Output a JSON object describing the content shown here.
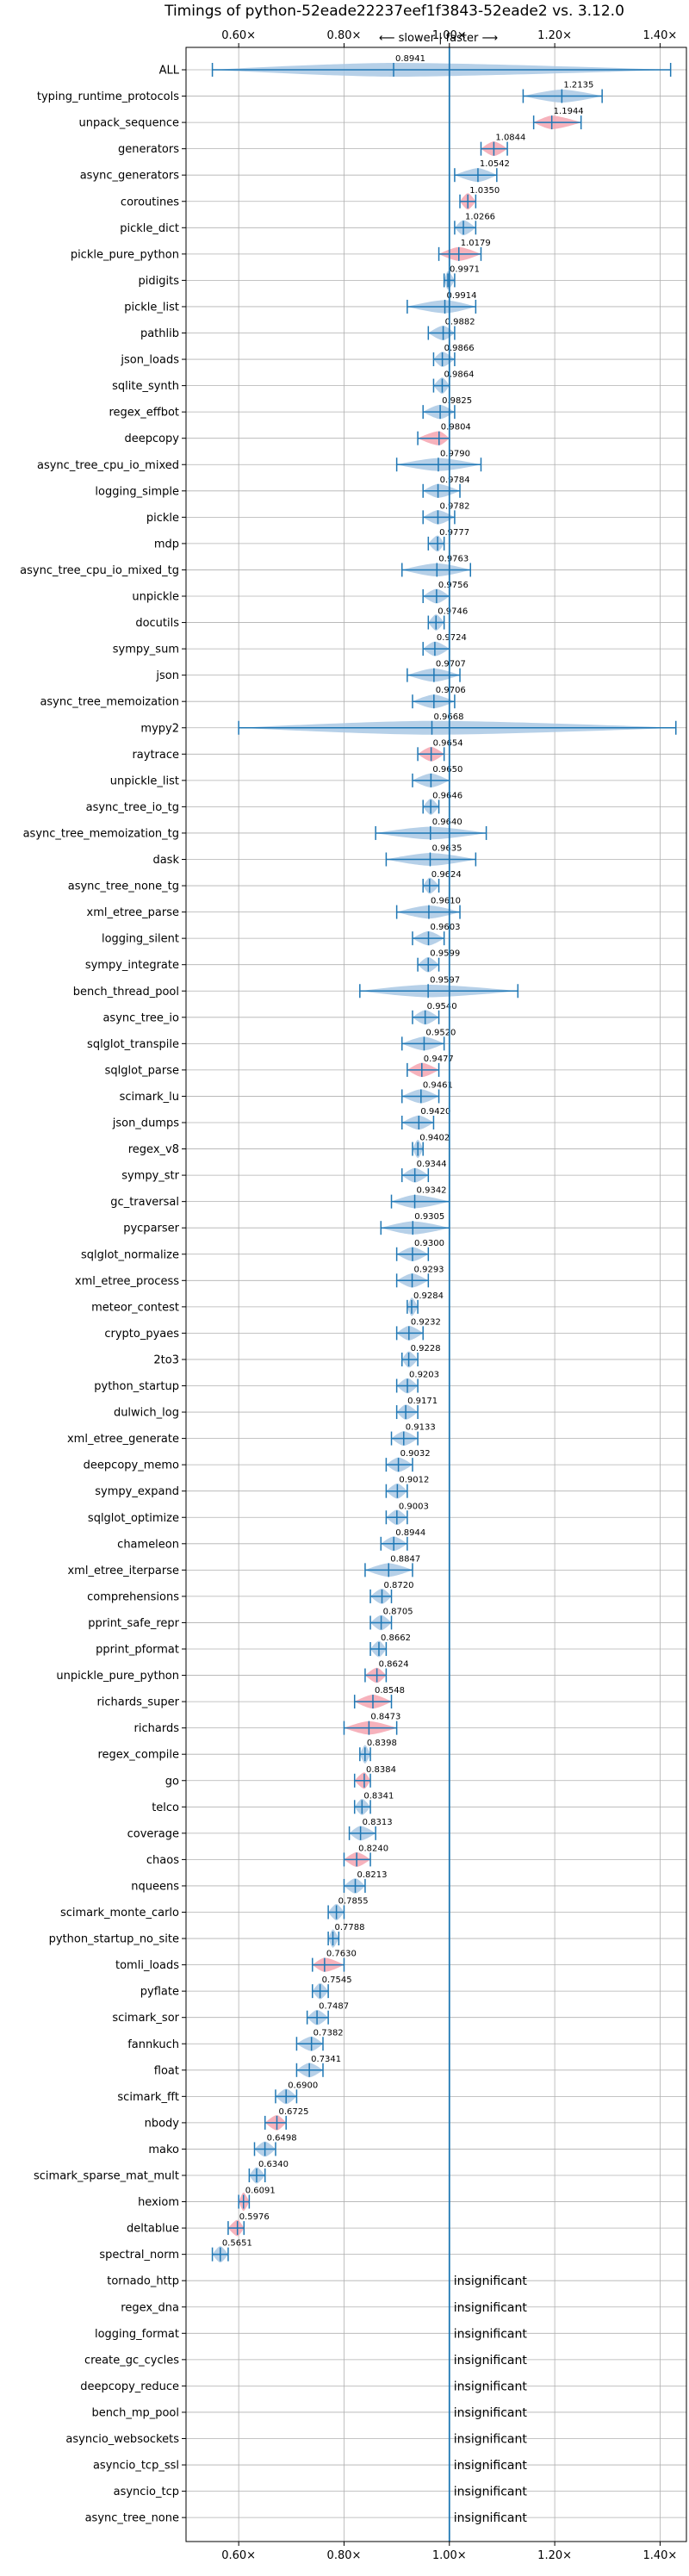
{
  "chart_data": {
    "type": "violin",
    "title": "Timings of python-52eade22237eef1f3843-52eade2 vs. 3.12.0",
    "direction_label": "⟵ slower | faster ⟶",
    "xlabel": "",
    "ylabel": "",
    "xlim": [
      0.5,
      1.45
    ],
    "x_ticks": [
      0.6,
      0.8,
      1.0,
      1.2,
      1.4
    ],
    "x_tick_labels": [
      "0.60×",
      "0.80×",
      "1.00×",
      "1.20×",
      "1.40×"
    ],
    "reference_line": 1.0,
    "grid": true,
    "colors": {
      "normal": "#a9c8e4",
      "regressed": "#f4a5b0",
      "line": "#1f77b4"
    },
    "significant": [
      {
        "name": "ALL",
        "value": 0.8941,
        "lo": 0.55,
        "hi": 1.42,
        "color": "normal"
      },
      {
        "name": "typing_runtime_protocols",
        "value": 1.2135,
        "lo": 1.14,
        "hi": 1.29,
        "color": "normal"
      },
      {
        "name": "unpack_sequence",
        "value": 1.1944,
        "lo": 1.16,
        "hi": 1.25,
        "color": "regressed"
      },
      {
        "name": "generators",
        "value": 1.0844,
        "lo": 1.06,
        "hi": 1.11,
        "color": "regressed"
      },
      {
        "name": "async_generators",
        "value": 1.0542,
        "lo": 1.01,
        "hi": 1.09,
        "color": "normal"
      },
      {
        "name": "coroutines",
        "value": 1.035,
        "lo": 1.02,
        "hi": 1.05,
        "color": "regressed"
      },
      {
        "name": "pickle_dict",
        "value": 1.0266,
        "lo": 1.01,
        "hi": 1.05,
        "color": "normal"
      },
      {
        "name": "pickle_pure_python",
        "value": 1.0179,
        "lo": 0.98,
        "hi": 1.06,
        "color": "regressed"
      },
      {
        "name": "pidigits",
        "value": 0.9971,
        "lo": 0.99,
        "hi": 1.01,
        "color": "normal"
      },
      {
        "name": "pickle_list",
        "value": 0.9914,
        "lo": 0.92,
        "hi": 1.05,
        "color": "normal"
      },
      {
        "name": "pathlib",
        "value": 0.9882,
        "lo": 0.96,
        "hi": 1.01,
        "color": "normal"
      },
      {
        "name": "json_loads",
        "value": 0.9866,
        "lo": 0.97,
        "hi": 1.01,
        "color": "normal"
      },
      {
        "name": "sqlite_synth",
        "value": 0.9864,
        "lo": 0.97,
        "hi": 1.0,
        "color": "normal"
      },
      {
        "name": "regex_effbot",
        "value": 0.9825,
        "lo": 0.95,
        "hi": 1.01,
        "color": "normal"
      },
      {
        "name": "deepcopy",
        "value": 0.9804,
        "lo": 0.94,
        "hi": 1.0,
        "color": "regressed"
      },
      {
        "name": "async_tree_cpu_io_mixed",
        "value": 0.979,
        "lo": 0.9,
        "hi": 1.06,
        "color": "normal"
      },
      {
        "name": "logging_simple",
        "value": 0.9784,
        "lo": 0.95,
        "hi": 1.02,
        "color": "normal"
      },
      {
        "name": "pickle",
        "value": 0.9782,
        "lo": 0.95,
        "hi": 1.01,
        "color": "normal"
      },
      {
        "name": "mdp",
        "value": 0.9777,
        "lo": 0.96,
        "hi": 0.99,
        "color": "normal"
      },
      {
        "name": "async_tree_cpu_io_mixed_tg",
        "value": 0.9763,
        "lo": 0.91,
        "hi": 1.04,
        "color": "normal"
      },
      {
        "name": "unpickle",
        "value": 0.9756,
        "lo": 0.95,
        "hi": 1.0,
        "color": "normal"
      },
      {
        "name": "docutils",
        "value": 0.9746,
        "lo": 0.96,
        "hi": 0.99,
        "color": "normal"
      },
      {
        "name": "sympy_sum",
        "value": 0.9724,
        "lo": 0.95,
        "hi": 1.0,
        "color": "normal"
      },
      {
        "name": "json",
        "value": 0.9707,
        "lo": 0.92,
        "hi": 1.02,
        "color": "normal"
      },
      {
        "name": "async_tree_memoization",
        "value": 0.9706,
        "lo": 0.93,
        "hi": 1.01,
        "color": "normal"
      },
      {
        "name": "mypy2",
        "value": 0.9668,
        "lo": 0.6,
        "hi": 1.43,
        "color": "normal"
      },
      {
        "name": "raytrace",
        "value": 0.9654,
        "lo": 0.94,
        "hi": 0.99,
        "color": "regressed"
      },
      {
        "name": "unpickle_list",
        "value": 0.965,
        "lo": 0.93,
        "hi": 1.0,
        "color": "normal"
      },
      {
        "name": "async_tree_io_tg",
        "value": 0.9646,
        "lo": 0.95,
        "hi": 0.98,
        "color": "normal"
      },
      {
        "name": "async_tree_memoization_tg",
        "value": 0.964,
        "lo": 0.86,
        "hi": 1.07,
        "color": "normal"
      },
      {
        "name": "dask",
        "value": 0.9635,
        "lo": 0.88,
        "hi": 1.05,
        "color": "normal"
      },
      {
        "name": "async_tree_none_tg",
        "value": 0.9624,
        "lo": 0.95,
        "hi": 0.98,
        "color": "normal"
      },
      {
        "name": "xml_etree_parse",
        "value": 0.961,
        "lo": 0.9,
        "hi": 1.02,
        "color": "normal"
      },
      {
        "name": "logging_silent",
        "value": 0.9603,
        "lo": 0.93,
        "hi": 0.99,
        "color": "normal"
      },
      {
        "name": "sympy_integrate",
        "value": 0.9599,
        "lo": 0.94,
        "hi": 0.98,
        "color": "normal"
      },
      {
        "name": "bench_thread_pool",
        "value": 0.9597,
        "lo": 0.83,
        "hi": 1.13,
        "color": "normal"
      },
      {
        "name": "async_tree_io",
        "value": 0.954,
        "lo": 0.93,
        "hi": 0.98,
        "color": "normal"
      },
      {
        "name": "sqlglot_transpile",
        "value": 0.952,
        "lo": 0.91,
        "hi": 0.99,
        "color": "normal"
      },
      {
        "name": "sqlglot_parse",
        "value": 0.9477,
        "lo": 0.92,
        "hi": 0.98,
        "color": "regressed"
      },
      {
        "name": "scimark_lu",
        "value": 0.9461,
        "lo": 0.91,
        "hi": 0.98,
        "color": "normal"
      },
      {
        "name": "json_dumps",
        "value": 0.942,
        "lo": 0.91,
        "hi": 0.97,
        "color": "normal"
      },
      {
        "name": "regex_v8",
        "value": 0.9402,
        "lo": 0.93,
        "hi": 0.95,
        "color": "normal"
      },
      {
        "name": "sympy_str",
        "value": 0.9344,
        "lo": 0.91,
        "hi": 0.96,
        "color": "normal"
      },
      {
        "name": "gc_traversal",
        "value": 0.9342,
        "lo": 0.89,
        "hi": 1.0,
        "color": "normal"
      },
      {
        "name": "pycparser",
        "value": 0.9305,
        "lo": 0.87,
        "hi": 1.0,
        "color": "normal"
      },
      {
        "name": "sqlglot_normalize",
        "value": 0.93,
        "lo": 0.9,
        "hi": 0.96,
        "color": "normal"
      },
      {
        "name": "xml_etree_process",
        "value": 0.9293,
        "lo": 0.9,
        "hi": 0.96,
        "color": "normal"
      },
      {
        "name": "meteor_contest",
        "value": 0.9284,
        "lo": 0.92,
        "hi": 0.94,
        "color": "normal"
      },
      {
        "name": "crypto_pyaes",
        "value": 0.9232,
        "lo": 0.9,
        "hi": 0.95,
        "color": "normal"
      },
      {
        "name": "2to3",
        "value": 0.9228,
        "lo": 0.91,
        "hi": 0.94,
        "color": "normal"
      },
      {
        "name": "python_startup",
        "value": 0.9203,
        "lo": 0.9,
        "hi": 0.94,
        "color": "normal"
      },
      {
        "name": "dulwich_log",
        "value": 0.9171,
        "lo": 0.9,
        "hi": 0.94,
        "color": "normal"
      },
      {
        "name": "xml_etree_generate",
        "value": 0.9133,
        "lo": 0.89,
        "hi": 0.94,
        "color": "normal"
      },
      {
        "name": "deepcopy_memo",
        "value": 0.9032,
        "lo": 0.88,
        "hi": 0.93,
        "color": "normal"
      },
      {
        "name": "sympy_expand",
        "value": 0.9012,
        "lo": 0.88,
        "hi": 0.92,
        "color": "normal"
      },
      {
        "name": "sqlglot_optimize",
        "value": 0.9003,
        "lo": 0.88,
        "hi": 0.92,
        "color": "normal"
      },
      {
        "name": "chameleon",
        "value": 0.8944,
        "lo": 0.87,
        "hi": 0.92,
        "color": "normal"
      },
      {
        "name": "xml_etree_iterparse",
        "value": 0.8847,
        "lo": 0.84,
        "hi": 0.93,
        "color": "normal"
      },
      {
        "name": "comprehensions",
        "value": 0.872,
        "lo": 0.85,
        "hi": 0.89,
        "color": "normal"
      },
      {
        "name": "pprint_safe_repr",
        "value": 0.8705,
        "lo": 0.85,
        "hi": 0.89,
        "color": "normal"
      },
      {
        "name": "pprint_pformat",
        "value": 0.8662,
        "lo": 0.85,
        "hi": 0.88,
        "color": "normal"
      },
      {
        "name": "unpickle_pure_python",
        "value": 0.8624,
        "lo": 0.84,
        "hi": 0.88,
        "color": "regressed"
      },
      {
        "name": "richards_super",
        "value": 0.8548,
        "lo": 0.82,
        "hi": 0.89,
        "color": "regressed"
      },
      {
        "name": "richards",
        "value": 0.8473,
        "lo": 0.8,
        "hi": 0.9,
        "color": "regressed"
      },
      {
        "name": "regex_compile",
        "value": 0.8398,
        "lo": 0.83,
        "hi": 0.85,
        "color": "normal"
      },
      {
        "name": "go",
        "value": 0.8384,
        "lo": 0.82,
        "hi": 0.85,
        "color": "regressed"
      },
      {
        "name": "telco",
        "value": 0.8341,
        "lo": 0.82,
        "hi": 0.85,
        "color": "normal"
      },
      {
        "name": "coverage",
        "value": 0.8313,
        "lo": 0.81,
        "hi": 0.86,
        "color": "normal"
      },
      {
        "name": "chaos",
        "value": 0.824,
        "lo": 0.8,
        "hi": 0.85,
        "color": "regressed"
      },
      {
        "name": "nqueens",
        "value": 0.8213,
        "lo": 0.8,
        "hi": 0.84,
        "color": "normal"
      },
      {
        "name": "scimark_monte_carlo",
        "value": 0.7855,
        "lo": 0.77,
        "hi": 0.8,
        "color": "normal"
      },
      {
        "name": "python_startup_no_site",
        "value": 0.7788,
        "lo": 0.77,
        "hi": 0.79,
        "color": "normal"
      },
      {
        "name": "tomli_loads",
        "value": 0.763,
        "lo": 0.74,
        "hi": 0.8,
        "color": "regressed"
      },
      {
        "name": "pyflate",
        "value": 0.7545,
        "lo": 0.74,
        "hi": 0.77,
        "color": "normal"
      },
      {
        "name": "scimark_sor",
        "value": 0.7487,
        "lo": 0.73,
        "hi": 0.77,
        "color": "normal"
      },
      {
        "name": "fannkuch",
        "value": 0.7382,
        "lo": 0.71,
        "hi": 0.76,
        "color": "normal"
      },
      {
        "name": "float",
        "value": 0.7341,
        "lo": 0.71,
        "hi": 0.76,
        "color": "normal"
      },
      {
        "name": "scimark_fft",
        "value": 0.69,
        "lo": 0.67,
        "hi": 0.71,
        "color": "normal"
      },
      {
        "name": "nbody",
        "value": 0.6725,
        "lo": 0.65,
        "hi": 0.69,
        "color": "regressed"
      },
      {
        "name": "mako",
        "value": 0.6498,
        "lo": 0.63,
        "hi": 0.67,
        "color": "normal"
      },
      {
        "name": "scimark_sparse_mat_mult",
        "value": 0.634,
        "lo": 0.62,
        "hi": 0.65,
        "color": "normal"
      },
      {
        "name": "hexiom",
        "value": 0.6091,
        "lo": 0.6,
        "hi": 0.62,
        "color": "regressed"
      },
      {
        "name": "deltablue",
        "value": 0.5976,
        "lo": 0.58,
        "hi": 0.61,
        "color": "regressed"
      },
      {
        "name": "spectral_norm",
        "value": 0.5651,
        "lo": 0.55,
        "hi": 0.58,
        "color": "normal"
      }
    ],
    "insignificant_label": "insignificant",
    "insignificant": [
      "tornado_http",
      "regex_dna",
      "logging_format",
      "create_gc_cycles",
      "deepcopy_reduce",
      "bench_mp_pool",
      "asyncio_websockets",
      "asyncio_tcp_ssl",
      "asyncio_tcp",
      "async_tree_none"
    ]
  }
}
